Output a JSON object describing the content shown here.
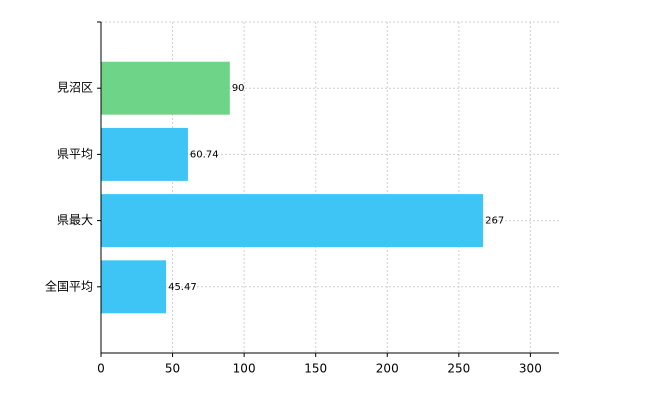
{
  "chart_data": {
    "type": "hbar",
    "categories": [
      "見沼区",
      "県平均",
      "県最大",
      "全国平均"
    ],
    "values": [
      90,
      60.74,
      267,
      45.47
    ],
    "colors": [
      "#6dd488",
      "#3ec5f5",
      "#3ec5f5",
      "#3ec5f5"
    ],
    "xlim": [
      0,
      320
    ],
    "xticks": [
      0,
      50,
      100,
      150,
      200,
      250,
      300
    ],
    "grid": true
  }
}
